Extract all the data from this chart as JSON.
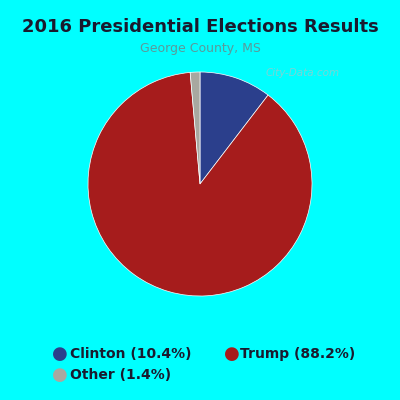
{
  "title": "2016 Presidential Elections Results",
  "subtitle": "George County, MS",
  "slices": [
    10.4,
    88.2,
    1.4
  ],
  "labels": [
    "Clinton (10.4%)",
    "Trump (88.2%)",
    "Other (1.4%)"
  ],
  "colors": [
    "#2b3f8c",
    "#a61c1c",
    "#a8a8a0"
  ],
  "background_color": "#00ffff",
  "pie_bg_color": "#d8f0e0",
  "startangle": 90,
  "title_fontsize": 13,
  "subtitle_fontsize": 9,
  "legend_fontsize": 10,
  "watermark": "City-Data.com"
}
